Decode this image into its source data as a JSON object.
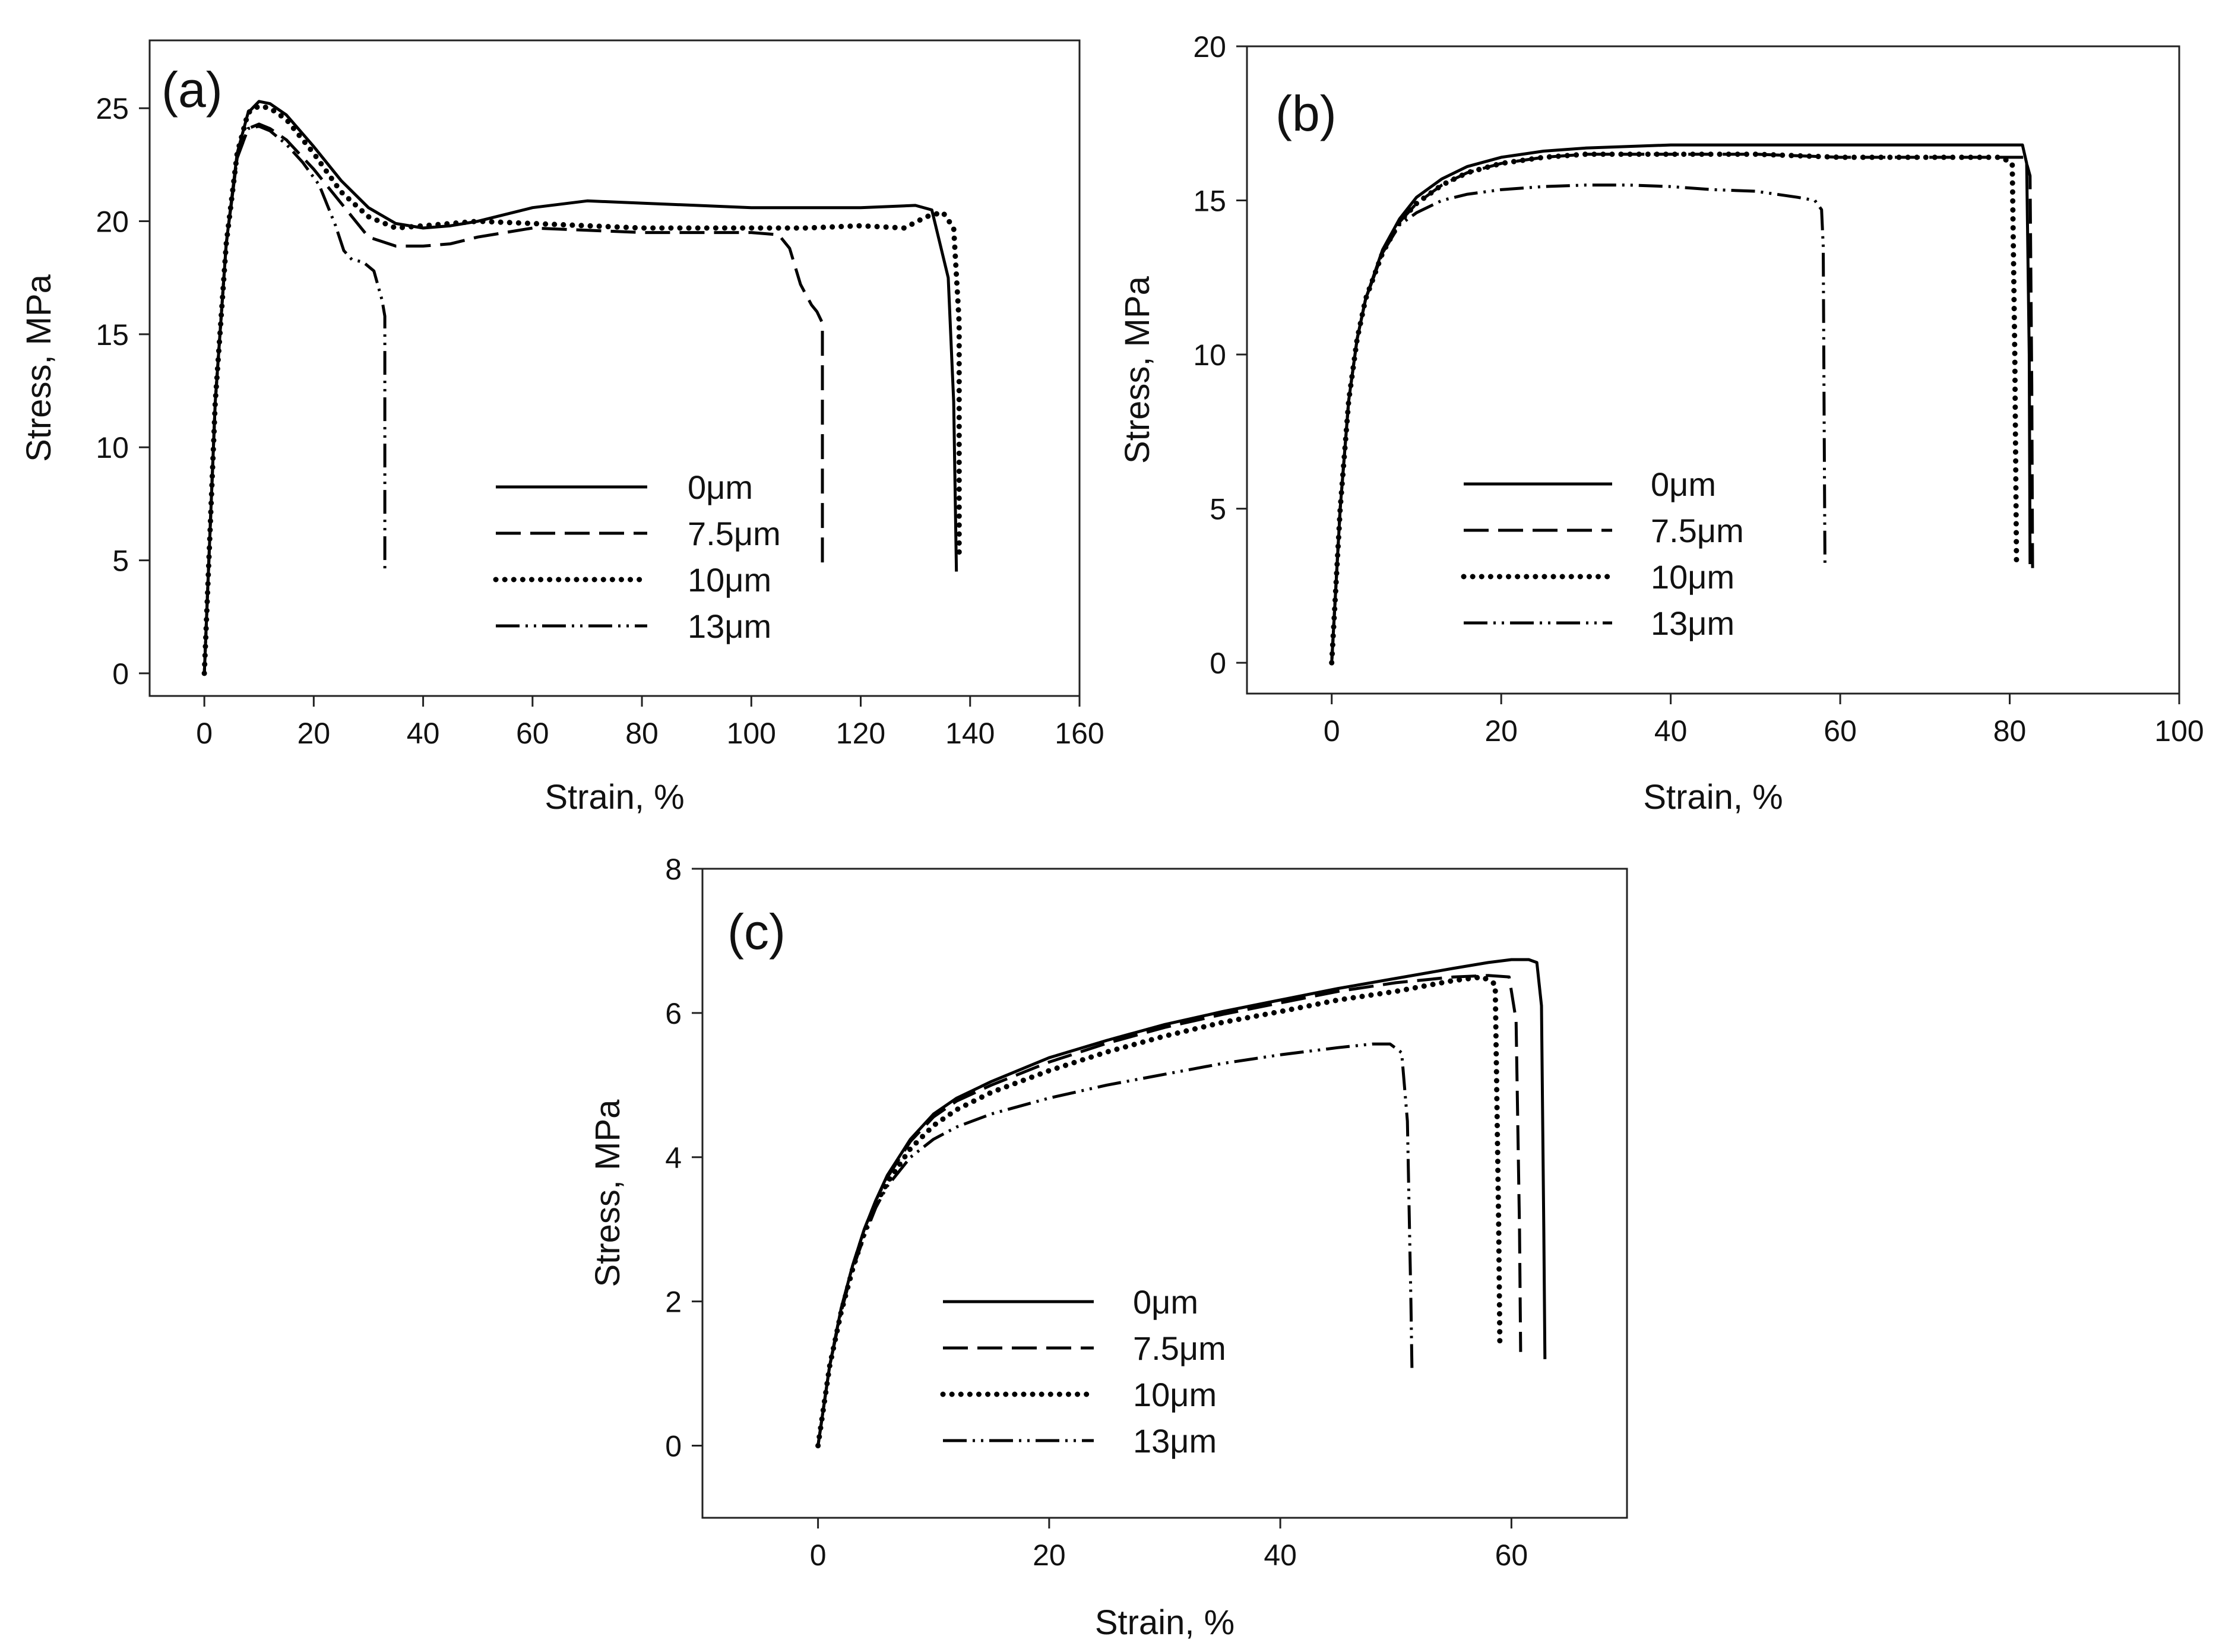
{
  "figure": {
    "description_colors": {
      "line": "#000000",
      "background": "#ffffff"
    }
  },
  "chart_data": [
    {
      "type": "line",
      "panel_label": "(a)",
      "xlabel": "Strain, %",
      "ylabel": "Stress, MPa",
      "xlim": [
        -10,
        160
      ],
      "ylim": [
        -1,
        28
      ],
      "xticks": [
        0,
        20,
        40,
        60,
        80,
        100,
        120,
        140,
        160
      ],
      "yticks": [
        0,
        5,
        10,
        15,
        20,
        25
      ],
      "legend": [
        "0μm",
        "7.5μm",
        "10μm",
        "13μm"
      ],
      "series": [
        {
          "name": "0μm",
          "style": "solid",
          "x": [
            0,
            2,
            4,
            6,
            8,
            10,
            12,
            15,
            20,
            25,
            30,
            35,
            40,
            45,
            50,
            60,
            70,
            80,
            90,
            100,
            110,
            120,
            130,
            133,
            136,
            137,
            137.5
          ],
          "y": [
            0,
            12,
            19,
            23,
            24.8,
            25.3,
            25.2,
            24.7,
            23.3,
            21.8,
            20.6,
            19.9,
            19.7,
            19.8,
            20.0,
            20.6,
            20.9,
            20.8,
            20.7,
            20.6,
            20.6,
            20.6,
            20.7,
            20.5,
            17.5,
            12.0,
            4.5
          ]
        },
        {
          "name": "7.5μm",
          "style": "dashed",
          "x": [
            0,
            2,
            4,
            6,
            8,
            10,
            12,
            15,
            20,
            25,
            30,
            35,
            40,
            45,
            50,
            60,
            70,
            80,
            90,
            100,
            105,
            107,
            109,
            111,
            112,
            113,
            113,
            113
          ],
          "y": [
            0,
            12,
            19,
            22.8,
            24.1,
            24.3,
            24.1,
            23.6,
            22.3,
            20.8,
            19.3,
            18.9,
            18.9,
            19.0,
            19.3,
            19.7,
            19.6,
            19.5,
            19.5,
            19.5,
            19.4,
            18.8,
            17.2,
            16.3,
            16.0,
            15.5,
            10.0,
            4.6
          ]
        },
        {
          "name": "10μm",
          "style": "dotted",
          "x": [
            0,
            2,
            4,
            6,
            8,
            10,
            12,
            15,
            20,
            25,
            30,
            35,
            40,
            45,
            50,
            60,
            70,
            80,
            90,
            100,
            110,
            120,
            128,
            132,
            135,
            137,
            138,
            138
          ],
          "y": [
            0,
            12,
            19,
            23,
            24.8,
            25.1,
            25.0,
            24.5,
            23.0,
            21.3,
            20.2,
            19.7,
            19.8,
            19.9,
            20.0,
            19.9,
            19.8,
            19.7,
            19.7,
            19.7,
            19.7,
            19.8,
            19.7,
            20.2,
            20.4,
            19.7,
            15.5,
            5.0
          ]
        },
        {
          "name": "13μm",
          "style": "dash-dot-dot",
          "x": [
            0,
            2,
            4,
            6,
            8,
            10,
            12,
            15,
            18,
            21,
            24,
            25.5,
            27,
            29,
            31,
            32.5,
            33,
            33,
            33
          ],
          "y": [
            0,
            12,
            19,
            22.8,
            24.1,
            24.2,
            24.0,
            23.4,
            22.6,
            21.6,
            19.8,
            18.7,
            18.3,
            18.2,
            17.8,
            16.5,
            15.8,
            10.0,
            4.5
          ]
        }
      ]
    },
    {
      "type": "line",
      "panel_label": "(b)",
      "xlabel": "Strain, %",
      "ylabel": "Stress, MPa",
      "xlim": [
        -10,
        100
      ],
      "ylim": [
        -1,
        20
      ],
      "xticks": [
        0,
        20,
        40,
        60,
        80,
        100
      ],
      "yticks": [
        0,
        5,
        10,
        15,
        20
      ],
      "legend": [
        "0μm",
        "7.5μm",
        "10μm",
        "13μm"
      ],
      "series": [
        {
          "name": "0μm",
          "style": "solid",
          "x": [
            0,
            1,
            2,
            3,
            4,
            6,
            8,
            10,
            13,
            16,
            20,
            25,
            30,
            40,
            50,
            60,
            70,
            80,
            81.5,
            82,
            82.3,
            82.4
          ],
          "y": [
            0,
            5,
            8.5,
            10.5,
            11.8,
            13.4,
            14.4,
            15.1,
            15.7,
            16.1,
            16.4,
            16.6,
            16.7,
            16.8,
            16.8,
            16.8,
            16.8,
            16.8,
            16.8,
            16.2,
            10.0,
            3.2
          ]
        },
        {
          "name": "7.5μm",
          "style": "dashed",
          "x": [
            0,
            1,
            2,
            3,
            4,
            6,
            8,
            10,
            13,
            16,
            20,
            25,
            30,
            40,
            50,
            60,
            70,
            80,
            81.8,
            82.4,
            82.6,
            82.7
          ],
          "y": [
            0,
            5,
            8.5,
            10.5,
            11.8,
            13.3,
            14.3,
            14.9,
            15.5,
            15.9,
            16.2,
            16.4,
            16.5,
            16.5,
            16.5,
            16.4,
            16.4,
            16.4,
            16.4,
            15.8,
            9.0,
            2.8
          ]
        },
        {
          "name": "10μm",
          "style": "dotted",
          "x": [
            0,
            1,
            2,
            3,
            4,
            6,
            8,
            10,
            13,
            16,
            20,
            25,
            30,
            40,
            50,
            60,
            70,
            79,
            80.3,
            80.6,
            80.8
          ],
          "y": [
            0,
            5,
            8.5,
            10.5,
            11.8,
            13.3,
            14.3,
            14.9,
            15.5,
            15.9,
            16.2,
            16.4,
            16.5,
            16.5,
            16.5,
            16.4,
            16.4,
            16.4,
            16.2,
            10.0,
            3.2
          ]
        },
        {
          "name": "13μm",
          "style": "dash-dot-dot",
          "x": [
            0,
            1,
            2,
            3,
            4,
            6,
            8,
            10,
            13,
            16,
            20,
            25,
            30,
            35,
            40,
            45,
            50,
            55,
            57,
            57.8,
            58,
            58.1,
            58.2
          ],
          "y": [
            0,
            5,
            8.5,
            10.5,
            11.8,
            13.3,
            14.2,
            14.6,
            15.0,
            15.2,
            15.35,
            15.45,
            15.5,
            15.5,
            15.45,
            15.35,
            15.3,
            15.1,
            15.0,
            14.7,
            13.5,
            8.0,
            3.2
          ]
        }
      ]
    },
    {
      "type": "line",
      "panel_label": "(c)",
      "xlabel": "Strain, %",
      "ylabel": "Stress, MPa",
      "xlim": [
        -10,
        70
      ],
      "ylim": [
        -1,
        8
      ],
      "xticks": [
        0,
        20,
        40,
        60
      ],
      "yticks": [
        0,
        2,
        4,
        6,
        8
      ],
      "legend": [
        "0μm",
        "7.5μm",
        "10μm",
        "13μm"
      ],
      "series": [
        {
          "name": "0μm",
          "style": "solid",
          "x": [
            0,
            1,
            2,
            3,
            4,
            5,
            6,
            8,
            10,
            12,
            15,
            20,
            25,
            30,
            35,
            40,
            45,
            50,
            55,
            58,
            60,
            61.5,
            62.2,
            62.6,
            62.8,
            62.9
          ],
          "y": [
            0,
            1.1,
            1.9,
            2.5,
            3.0,
            3.4,
            3.75,
            4.25,
            4.6,
            4.82,
            5.05,
            5.38,
            5.62,
            5.84,
            6.02,
            6.18,
            6.34,
            6.48,
            6.62,
            6.7,
            6.74,
            6.74,
            6.7,
            6.1,
            3.0,
            1.2
          ]
        },
        {
          "name": "7.5μm",
          "style": "dashed",
          "x": [
            0,
            1,
            2,
            3,
            4,
            5,
            6,
            8,
            10,
            12,
            15,
            20,
            25,
            30,
            35,
            40,
            45,
            50,
            55,
            58,
            59.8,
            60.4,
            60.7,
            60.8
          ],
          "y": [
            0,
            1.1,
            1.9,
            2.5,
            3.0,
            3.4,
            3.72,
            4.22,
            4.56,
            4.78,
            5.0,
            5.32,
            5.58,
            5.8,
            5.98,
            6.14,
            6.3,
            6.42,
            6.5,
            6.52,
            6.5,
            5.9,
            3.0,
            1.3
          ]
        },
        {
          "name": "10μm",
          "style": "dotted",
          "x": [
            0,
            1,
            2,
            3,
            4,
            5,
            6,
            8,
            10,
            12,
            15,
            20,
            25,
            30,
            35,
            40,
            45,
            50,
            55,
            57.5,
            58.6,
            58.9,
            59.0
          ],
          "y": [
            0,
            1.1,
            1.85,
            2.45,
            2.95,
            3.35,
            3.65,
            4.12,
            4.44,
            4.66,
            4.9,
            5.2,
            5.46,
            5.68,
            5.87,
            6.02,
            6.18,
            6.3,
            6.45,
            6.5,
            6.4,
            3.0,
            1.4
          ]
        },
        {
          "name": "13μm",
          "style": "dash-dot-dot",
          "x": [
            0,
            1,
            2,
            3,
            4,
            5,
            6,
            8,
            10,
            12,
            15,
            20,
            25,
            30,
            35,
            40,
            45,
            48,
            49.5,
            50.5,
            51,
            51.3,
            51.4
          ],
          "y": [
            0,
            1.1,
            1.85,
            2.45,
            2.9,
            3.3,
            3.6,
            4.0,
            4.25,
            4.42,
            4.6,
            4.82,
            5.0,
            5.15,
            5.3,
            5.42,
            5.52,
            5.57,
            5.57,
            5.45,
            4.5,
            2.0,
            1.0
          ]
        }
      ]
    }
  ]
}
